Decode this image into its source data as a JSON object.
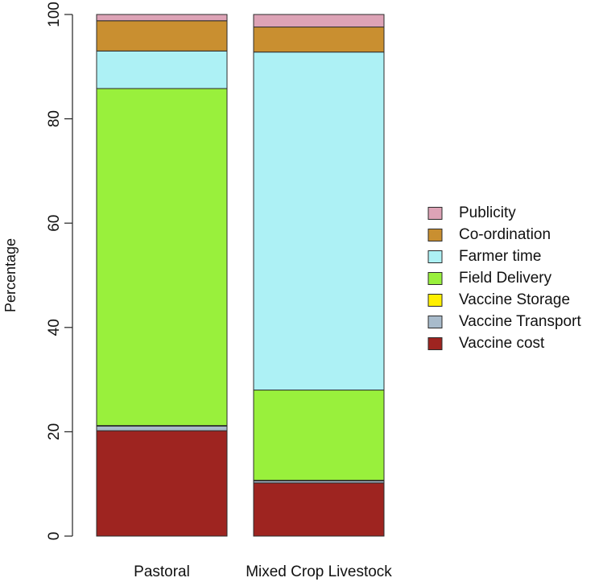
{
  "chart_data": {
    "type": "bar",
    "stacked": true,
    "title": "",
    "xlabel": "",
    "ylabel": "Percentage",
    "ylim": [
      0,
      100
    ],
    "yticks": [
      "0",
      "20",
      "40",
      "60",
      "80",
      "100"
    ],
    "categories": [
      "Pastoral",
      "Mixed Crop Livestock"
    ],
    "grid": false,
    "legend_position": "right",
    "series": [
      {
        "name": "Vaccine cost",
        "color": "#9E2420",
        "values": [
          20.2,
          10.2
        ]
      },
      {
        "name": "Vaccine Transport",
        "color": "#A8BBCB",
        "values": [
          0.9,
          0.4
        ]
      },
      {
        "name": "Vaccine Storage",
        "color": "#FFF000",
        "values": [
          0.1,
          0.1
        ]
      },
      {
        "name": "Field Delivery",
        "color": "#99F03C",
        "values": [
          64.6,
          17.3
        ]
      },
      {
        "name": "Farmer time",
        "color": "#ADF1F5",
        "values": [
          7.2,
          64.8
        ]
      },
      {
        "name": "Co-ordination",
        "color": "#C98F30",
        "values": [
          5.8,
          4.8
        ]
      },
      {
        "name": "Publicity",
        "color": "#DDA3B6",
        "values": [
          1.2,
          2.4
        ]
      }
    ],
    "legend_order": [
      "Publicity",
      "Co-ordination",
      "Farmer time",
      "Field Delivery",
      "Vaccine Storage",
      "Vaccine Transport",
      "Vaccine cost"
    ]
  }
}
